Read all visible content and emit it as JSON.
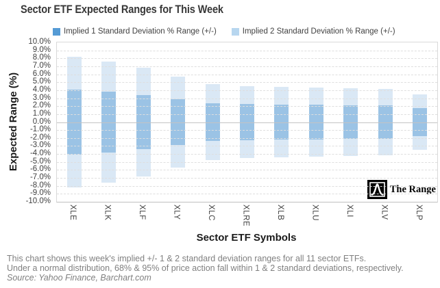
{
  "title": "Sector ETF Expected Ranges for This Week",
  "legend": {
    "items": [
      {
        "label": "Implied 1 Standard Deviation % Range (+/-)",
        "color": "#559BD5"
      },
      {
        "label": "Implied 2 Standard Deviation % Range (+/-)",
        "color": "#B7D6EF"
      }
    ]
  },
  "chart_data": {
    "type": "bar",
    "subtype": "symmetric-range-columns",
    "categories": [
      "XLE",
      "XLK",
      "XLF",
      "XLY",
      "XLC",
      "XLRE",
      "XLB",
      "XLU",
      "XLI",
      "XLV",
      "XLP"
    ],
    "series": [
      {
        "name": "Implied 2 Standard Deviation % Range (+/-)",
        "plus_minus_values": [
          8.2,
          7.6,
          6.8,
          5.7,
          4.8,
          4.5,
          4.4,
          4.3,
          4.25,
          4.2,
          3.5
        ],
        "color": "#DAE8F5"
      },
      {
        "name": "Implied 1 Standard Deviation % Range (+/-)",
        "plus_minus_values": [
          4.1,
          3.8,
          3.4,
          2.85,
          2.4,
          2.25,
          2.2,
          2.15,
          2.1,
          2.1,
          1.75
        ],
        "color": "#9BC3E5"
      }
    ],
    "title": "Sector ETF Expected Ranges for This Week",
    "xlabel": "Sector ETF Symbols",
    "ylabel": "Expected Range (%)",
    "ylim": [
      -10,
      10
    ],
    "ytick_step": 1,
    "yticklabels": [
      "10.0%",
      "9.0%",
      "8.0%",
      "7.0%",
      "6.0%",
      "5.0%",
      "4.0%",
      "3.0%",
      "2.0%",
      "1.0%",
      "0.0%",
      "-1.0%",
      "-2.0%",
      "-3.0%",
      "-4.0%",
      "-5.0%",
      "-6.0%",
      "-7.0%",
      "-8.0%",
      "-9.0%",
      "-10.0%"
    ],
    "grid": "horizontal-dashed",
    "zero_line": "solid",
    "legend_position": "top"
  },
  "logo": {
    "text": "The Range",
    "icon": "bell-curve-icon"
  },
  "caption": {
    "line1": "This chart shows this week's implied +/- 1 & 2 standard deviation ranges for all 11 sector ETFs.",
    "line2": "Under a normal distribution, 68% & 95% of price action fall within 1 & 2 standard deviations, respectively.",
    "line3": "Source: Yahoo Finance, Barchart.com"
  },
  "colors": {
    "sigma1_bar": "#9BC3E5",
    "sigma2_bar": "#DAE8F5",
    "grid": "#DEDEDE",
    "zero_line": "#C3C3C3",
    "axis_text": "#3F3F3F",
    "caption_text": "#7F7F7F",
    "title_text": "#383838"
  }
}
